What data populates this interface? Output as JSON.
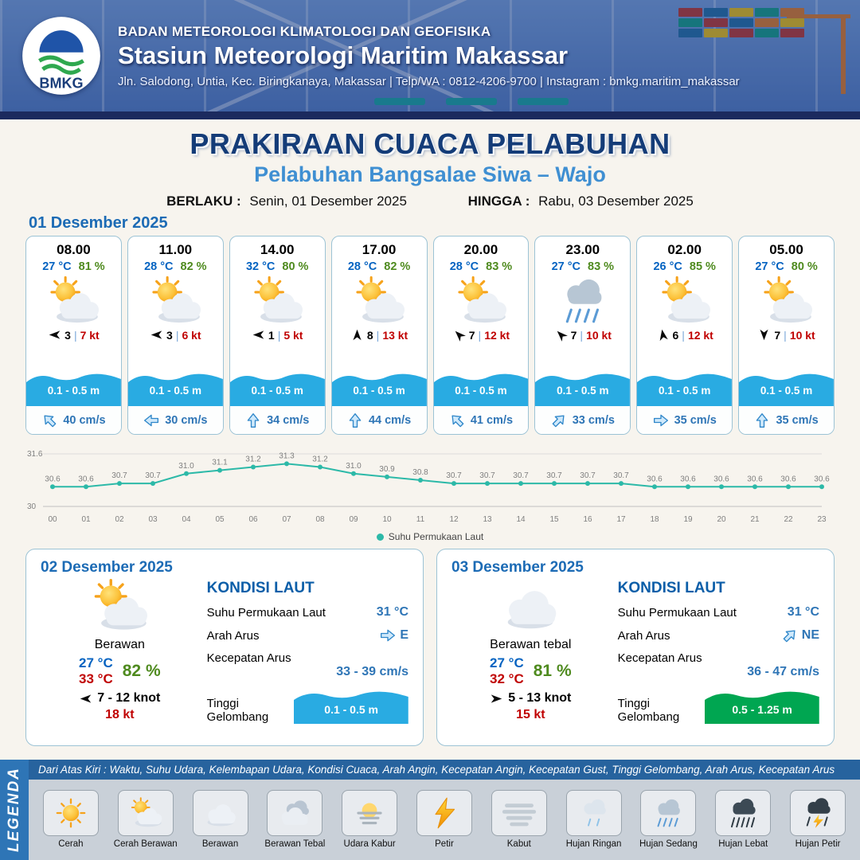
{
  "header": {
    "agency": "BADAN METEOROLOGI KLIMATOLOGI DAN GEOFISIKA",
    "station": "Stasiun Meteorologi Maritim Makassar",
    "contact": "Jln. Salodong, Untia, Kec. Biringkanaya, Makassar | Telp/WA : 0812-4206-9700 | Instagram : bmkg.maritim_makassar",
    "logo": "BMKG"
  },
  "title": {
    "main": "PRAKIRAAN CUACA PELABUHAN",
    "subtitle": "Pelabuhan Bangsalae Siwa – Wajo",
    "valid_from_label": "BERLAKU :",
    "valid_from": "Senin, 01 Desember 2025",
    "valid_to_label": "HINGGA :",
    "valid_to": "Rabu, 03 Desember 2025"
  },
  "day1": {
    "date": "01 Desember 2025",
    "wave_color": "#29abe2",
    "cards": [
      {
        "time": "08.00",
        "temp": "27 °C",
        "humidity": "81 %",
        "icon": "sun-cloud",
        "wind_deg": 180,
        "wind_speed": "3",
        "wind_gust": "7 kt",
        "wave": "0.1 - 0.5 m",
        "current_deg": -135,
        "current": "40 cm/s"
      },
      {
        "time": "11.00",
        "temp": "28 °C",
        "humidity": "82 %",
        "icon": "sun-cloud",
        "wind_deg": 180,
        "wind_speed": "3",
        "wind_gust": "6 kt",
        "wave": "0.1 - 0.5 m",
        "current_deg": 180,
        "current": "30 cm/s"
      },
      {
        "time": "14.00",
        "temp": "32 °C",
        "humidity": "80 %",
        "icon": "sun-cloud",
        "wind_deg": 180,
        "wind_speed": "1",
        "wind_gust": "5 kt",
        "wave": "0.1 - 0.5 m",
        "current_deg": -90,
        "current": "34 cm/s"
      },
      {
        "time": "17.00",
        "temp": "28 °C",
        "humidity": "82 %",
        "icon": "sun-cloud",
        "wind_deg": -90,
        "wind_speed": "8",
        "wind_gust": "13 kt",
        "wave": "0.1 - 0.5 m",
        "current_deg": -90,
        "current": "44 cm/s"
      },
      {
        "time": "20.00",
        "temp": "28 °C",
        "humidity": "83 %",
        "icon": "sun-cloud",
        "wind_deg": -135,
        "wind_speed": "7",
        "wind_gust": "12 kt",
        "wave": "0.1 - 0.5 m",
        "current_deg": -135,
        "current": "41 cm/s"
      },
      {
        "time": "23.00",
        "temp": "27 °C",
        "humidity": "83 %",
        "icon": "rain-medium",
        "wind_deg": -135,
        "wind_speed": "7",
        "wind_gust": "10 kt",
        "wave": "0.1 - 0.5 m",
        "current_deg": -45,
        "current": "33 cm/s"
      },
      {
        "time": "02.00",
        "temp": "26 °C",
        "humidity": "85 %",
        "icon": "sun-cloud",
        "wind_deg": -100,
        "wind_speed": "6",
        "wind_gust": "12 kt",
        "wave": "0.1 - 0.5 m",
        "current_deg": 0,
        "current": "35 cm/s"
      },
      {
        "time": "05.00",
        "temp": "27 °C",
        "humidity": "80 %",
        "icon": "sun-cloud",
        "wind_deg": 90,
        "wind_speed": "7",
        "wind_gust": "10 kt",
        "wave": "0.1 - 0.5 m",
        "current_deg": -90,
        "current": "35 cm/s"
      }
    ]
  },
  "chart_data": {
    "type": "line",
    "title": "Suhu Permukaan Laut",
    "legend": "Suhu Permukaan Laut",
    "color": "#2cb9a8",
    "x": [
      "00",
      "01",
      "02",
      "03",
      "04",
      "05",
      "06",
      "07",
      "08",
      "09",
      "10",
      "11",
      "12",
      "13",
      "14",
      "15",
      "16",
      "17",
      "18",
      "19",
      "20",
      "21",
      "22",
      "23"
    ],
    "values": [
      30.6,
      30.6,
      30.7,
      30.7,
      31.0,
      31.1,
      31.2,
      31.3,
      31.2,
      31.0,
      30.9,
      30.8,
      30.7,
      30.7,
      30.7,
      30.7,
      30.7,
      30.7,
      30.6,
      30.6,
      30.6,
      30.6,
      30.6,
      30.6
    ],
    "ylim": [
      30,
      31.6
    ],
    "xlabel": "",
    "ylabel": ""
  },
  "days": [
    {
      "date": "02 Desember 2025",
      "icon": "sun-cloud",
      "condition": "Berawan",
      "temp_min": "27 °C",
      "temp_max": "33 °C",
      "humidity": "82 %",
      "wind_deg": 180,
      "wind": "7  - 12 knot",
      "gust": "18 kt",
      "sea": {
        "heading": "KONDISI LAUT",
        "sst_label": "Suhu Permukaan Laut",
        "sst": "31 °C",
        "dir_label": "Arah Arus",
        "dir": "E",
        "dir_deg": 0,
        "speed_label": "Kecepatan Arus",
        "speed": "33 - 39 cm/s",
        "wave_label": "Tinggi Gelombang",
        "wave": "0.1 - 0.5 m",
        "wave_color": "#29abe2"
      }
    },
    {
      "date": "03 Desember 2025",
      "icon": "cloud",
      "condition": "Berawan tebal",
      "temp_min": "27 °C",
      "temp_max": "32 °C",
      "humidity": "81 %",
      "wind_deg": 0,
      "wind": "5  - 13 knot",
      "gust": "15 kt",
      "sea": {
        "heading": "KONDISI LAUT",
        "sst_label": "Suhu Permukaan Laut",
        "sst": "31 °C",
        "dir_label": "Arah Arus",
        "dir": "NE",
        "dir_deg": -45,
        "speed_label": "Kecepatan Arus",
        "speed": "36  - 47 cm/s",
        "wave_label": "Tinggi Gelombang",
        "wave": "0.5 - 1.25 m",
        "wave_color": "#00a651"
      }
    }
  ],
  "legend": {
    "title": "LEGENDA",
    "note": "Dari Atas Kiri : Waktu, Suhu Udara, Kelembapan Udara, Kondisi Cuaca, Arah Angin, Kecepatan Angin, Kecepatan Gust, Tinggi Gelombang, Arah Arus, Kecepatan Arus",
    "items": [
      {
        "label": "Cerah",
        "icon": "sun-icon"
      },
      {
        "label": "Cerah Berawan",
        "icon": "sun-cloud-icon"
      },
      {
        "label": "Berawan",
        "icon": "cloud-icon"
      },
      {
        "label": "Berawan Tebal",
        "icon": "cloud-thick-icon"
      },
      {
        "label": "Udara Kabur",
        "icon": "haze-icon"
      },
      {
        "label": "Petir",
        "icon": "lightning-icon"
      },
      {
        "label": "Kabut",
        "icon": "fog-icon"
      },
      {
        "label": "Hujan Ringan",
        "icon": "rain-light-icon"
      },
      {
        "label": "Hujan Sedang",
        "icon": "rain-medium-icon"
      },
      {
        "label": "Hujan Lebat",
        "icon": "rain-heavy-icon"
      },
      {
        "label": "Hujan Petir",
        "icon": "rain-thunder-icon"
      }
    ]
  }
}
